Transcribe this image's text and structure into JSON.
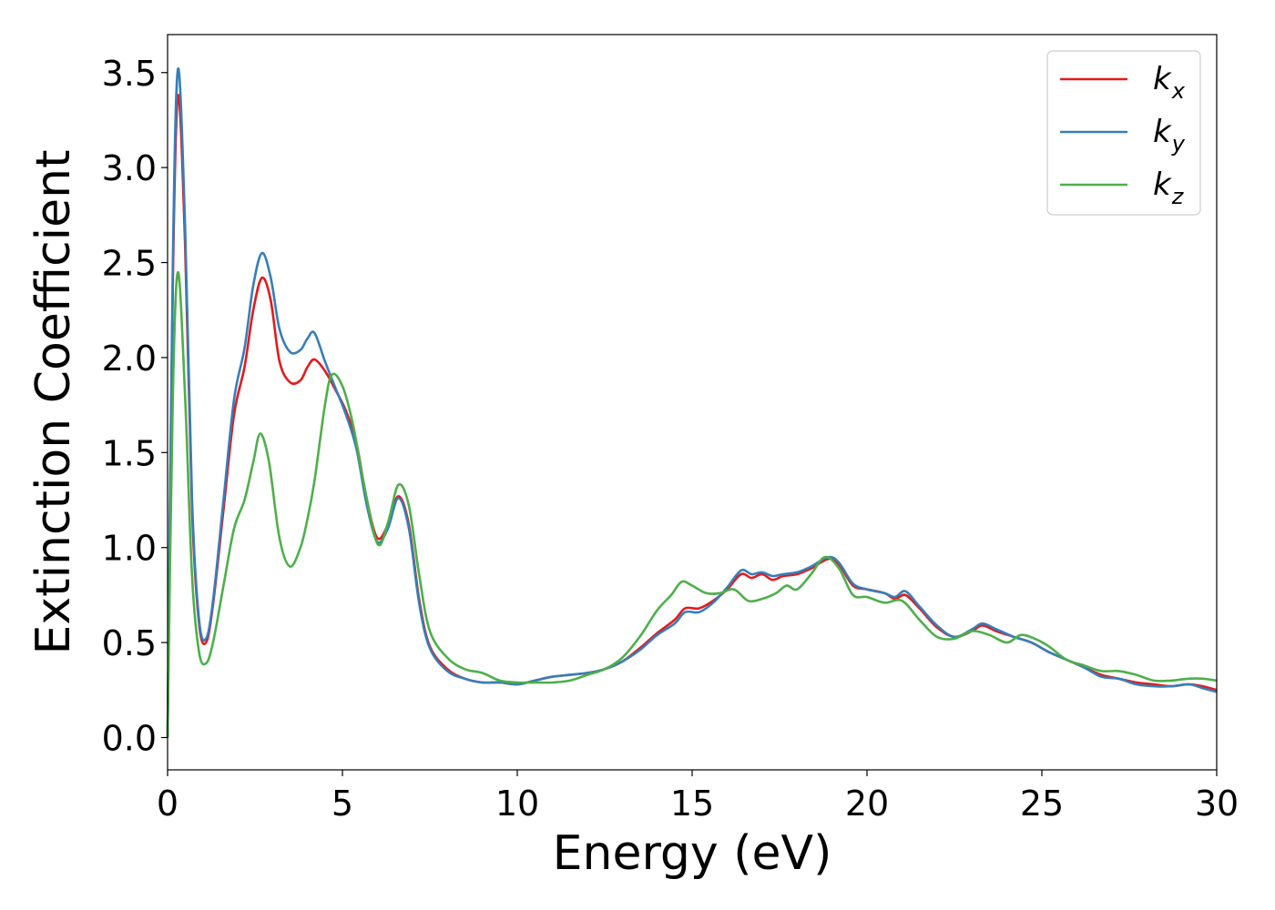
{
  "chart_data": {
    "type": "line",
    "xlabel": "Energy (eV)",
    "ylabel": "Extinction Coefficient",
    "xlim": [
      0,
      30
    ],
    "ylim": [
      -0.17,
      3.7
    ],
    "xticks": [
      0,
      5,
      10,
      15,
      20,
      25,
      30
    ],
    "xtick_labels": [
      "0",
      "5",
      "10",
      "15",
      "20",
      "25",
      "30"
    ],
    "yticks": [
      0.0,
      0.5,
      1.0,
      1.5,
      2.0,
      2.5,
      3.0,
      3.5
    ],
    "ytick_labels": [
      "0.0",
      "0.5",
      "1.0",
      "1.5",
      "2.0",
      "2.5",
      "3.0",
      "3.5"
    ],
    "grid": false,
    "legend_position": "top-right",
    "series": [
      {
        "name": "k",
        "subscript": "x",
        "color": "#e41a1c",
        "points": [
          [
            0,
            0.0
          ],
          [
            0.15,
            2.4
          ],
          [
            0.3,
            3.38
          ],
          [
            0.5,
            2.6
          ],
          [
            0.7,
            1.2
          ],
          [
            0.9,
            0.6
          ],
          [
            1.1,
            0.5
          ],
          [
            1.3,
            0.7
          ],
          [
            1.6,
            1.2
          ],
          [
            1.9,
            1.7
          ],
          [
            2.2,
            1.95
          ],
          [
            2.45,
            2.25
          ],
          [
            2.7,
            2.42
          ],
          [
            2.95,
            2.3
          ],
          [
            3.2,
            1.98
          ],
          [
            3.5,
            1.87
          ],
          [
            3.8,
            1.88
          ],
          [
            4.0,
            1.95
          ],
          [
            4.2,
            1.99
          ],
          [
            4.5,
            1.93
          ],
          [
            4.8,
            1.83
          ],
          [
            5.1,
            1.72
          ],
          [
            5.4,
            1.55
          ],
          [
            5.7,
            1.25
          ],
          [
            6.0,
            1.05
          ],
          [
            6.3,
            1.12
          ],
          [
            6.6,
            1.27
          ],
          [
            6.9,
            1.12
          ],
          [
            7.2,
            0.72
          ],
          [
            7.5,
            0.48
          ],
          [
            8.0,
            0.36
          ],
          [
            8.5,
            0.31
          ],
          [
            9.0,
            0.29
          ],
          [
            9.5,
            0.29
          ],
          [
            10.0,
            0.28
          ],
          [
            10.5,
            0.3
          ],
          [
            11.0,
            0.32
          ],
          [
            11.5,
            0.33
          ],
          [
            12.0,
            0.34
          ],
          [
            12.5,
            0.36
          ],
          [
            13.0,
            0.4
          ],
          [
            13.5,
            0.47
          ],
          [
            14.0,
            0.55
          ],
          [
            14.5,
            0.62
          ],
          [
            14.8,
            0.68
          ],
          [
            15.2,
            0.68
          ],
          [
            15.6,
            0.72
          ],
          [
            16.0,
            0.78
          ],
          [
            16.4,
            0.86
          ],
          [
            16.7,
            0.84
          ],
          [
            17.0,
            0.86
          ],
          [
            17.3,
            0.83
          ],
          [
            17.6,
            0.85
          ],
          [
            18.0,
            0.86
          ],
          [
            18.4,
            0.89
          ],
          [
            18.9,
            0.94
          ],
          [
            19.2,
            0.91
          ],
          [
            19.6,
            0.8
          ],
          [
            20.0,
            0.78
          ],
          [
            20.5,
            0.76
          ],
          [
            20.8,
            0.73
          ],
          [
            21.1,
            0.75
          ],
          [
            21.5,
            0.68
          ],
          [
            22.0,
            0.58
          ],
          [
            22.5,
            0.53
          ],
          [
            23.0,
            0.56
          ],
          [
            23.3,
            0.59
          ],
          [
            23.7,
            0.56
          ],
          [
            24.2,
            0.53
          ],
          [
            24.7,
            0.5
          ],
          [
            25.2,
            0.45
          ],
          [
            25.7,
            0.41
          ],
          [
            26.2,
            0.37
          ],
          [
            26.7,
            0.33
          ],
          [
            27.2,
            0.31
          ],
          [
            27.7,
            0.29
          ],
          [
            28.2,
            0.28
          ],
          [
            28.7,
            0.27
          ],
          [
            29.2,
            0.28
          ],
          [
            29.6,
            0.27
          ],
          [
            30.0,
            0.25
          ]
        ]
      },
      {
        "name": "k",
        "subscript": "y",
        "color": "#377eb8",
        "points": [
          [
            0,
            0.0
          ],
          [
            0.15,
            2.5
          ],
          [
            0.3,
            3.52
          ],
          [
            0.5,
            2.7
          ],
          [
            0.7,
            1.25
          ],
          [
            0.9,
            0.62
          ],
          [
            1.1,
            0.52
          ],
          [
            1.3,
            0.72
          ],
          [
            1.6,
            1.25
          ],
          [
            1.9,
            1.78
          ],
          [
            2.2,
            2.05
          ],
          [
            2.45,
            2.38
          ],
          [
            2.7,
            2.55
          ],
          [
            2.95,
            2.42
          ],
          [
            3.2,
            2.15
          ],
          [
            3.5,
            2.03
          ],
          [
            3.8,
            2.04
          ],
          [
            4.0,
            2.1
          ],
          [
            4.2,
            2.13
          ],
          [
            4.5,
            1.98
          ],
          [
            4.8,
            1.84
          ],
          [
            5.1,
            1.7
          ],
          [
            5.4,
            1.52
          ],
          [
            5.7,
            1.22
          ],
          [
            6.0,
            1.03
          ],
          [
            6.3,
            1.1
          ],
          [
            6.6,
            1.26
          ],
          [
            6.9,
            1.1
          ],
          [
            7.2,
            0.7
          ],
          [
            7.5,
            0.47
          ],
          [
            8.0,
            0.35
          ],
          [
            8.5,
            0.31
          ],
          [
            9.0,
            0.29
          ],
          [
            9.5,
            0.29
          ],
          [
            10.0,
            0.28
          ],
          [
            10.5,
            0.3
          ],
          [
            11.0,
            0.32
          ],
          [
            11.5,
            0.33
          ],
          [
            12.0,
            0.34
          ],
          [
            12.5,
            0.36
          ],
          [
            13.0,
            0.4
          ],
          [
            13.5,
            0.46
          ],
          [
            14.0,
            0.54
          ],
          [
            14.5,
            0.6
          ],
          [
            14.8,
            0.66
          ],
          [
            15.2,
            0.66
          ],
          [
            15.6,
            0.71
          ],
          [
            16.0,
            0.79
          ],
          [
            16.4,
            0.88
          ],
          [
            16.7,
            0.86
          ],
          [
            17.0,
            0.87
          ],
          [
            17.3,
            0.85
          ],
          [
            17.6,
            0.86
          ],
          [
            18.0,
            0.87
          ],
          [
            18.4,
            0.9
          ],
          [
            18.9,
            0.95
          ],
          [
            19.2,
            0.92
          ],
          [
            19.6,
            0.81
          ],
          [
            20.0,
            0.78
          ],
          [
            20.5,
            0.76
          ],
          [
            20.8,
            0.74
          ],
          [
            21.1,
            0.77
          ],
          [
            21.5,
            0.69
          ],
          [
            22.0,
            0.59
          ],
          [
            22.5,
            0.53
          ],
          [
            23.0,
            0.57
          ],
          [
            23.3,
            0.6
          ],
          [
            23.7,
            0.57
          ],
          [
            24.2,
            0.53
          ],
          [
            24.7,
            0.5
          ],
          [
            25.2,
            0.45
          ],
          [
            25.7,
            0.41
          ],
          [
            26.2,
            0.37
          ],
          [
            26.7,
            0.32
          ],
          [
            27.2,
            0.31
          ],
          [
            27.7,
            0.28
          ],
          [
            28.2,
            0.27
          ],
          [
            28.7,
            0.27
          ],
          [
            29.2,
            0.28
          ],
          [
            29.6,
            0.26
          ],
          [
            30.0,
            0.24
          ]
        ]
      },
      {
        "name": "k",
        "subscript": "z",
        "color": "#4daf4a",
        "points": [
          [
            0,
            0.0
          ],
          [
            0.15,
            1.8
          ],
          [
            0.3,
            2.45
          ],
          [
            0.5,
            1.8
          ],
          [
            0.7,
            0.85
          ],
          [
            0.9,
            0.45
          ],
          [
            1.1,
            0.39
          ],
          [
            1.3,
            0.5
          ],
          [
            1.6,
            0.8
          ],
          [
            1.9,
            1.1
          ],
          [
            2.2,
            1.25
          ],
          [
            2.45,
            1.45
          ],
          [
            2.65,
            1.6
          ],
          [
            2.9,
            1.45
          ],
          [
            3.2,
            1.05
          ],
          [
            3.5,
            0.9
          ],
          [
            3.8,
            1.0
          ],
          [
            4.0,
            1.15
          ],
          [
            4.2,
            1.35
          ],
          [
            4.5,
            1.75
          ],
          [
            4.7,
            1.91
          ],
          [
            5.0,
            1.85
          ],
          [
            5.3,
            1.65
          ],
          [
            5.6,
            1.35
          ],
          [
            6.0,
            1.02
          ],
          [
            6.3,
            1.13
          ],
          [
            6.6,
            1.33
          ],
          [
            6.9,
            1.22
          ],
          [
            7.2,
            0.85
          ],
          [
            7.5,
            0.56
          ],
          [
            8.0,
            0.42
          ],
          [
            8.5,
            0.36
          ],
          [
            9.0,
            0.34
          ],
          [
            9.5,
            0.3
          ],
          [
            10.0,
            0.29
          ],
          [
            10.5,
            0.29
          ],
          [
            11.0,
            0.29
          ],
          [
            11.5,
            0.3
          ],
          [
            12.0,
            0.33
          ],
          [
            12.5,
            0.36
          ],
          [
            13.0,
            0.42
          ],
          [
            13.5,
            0.53
          ],
          [
            14.0,
            0.67
          ],
          [
            14.4,
            0.75
          ],
          [
            14.7,
            0.82
          ],
          [
            15.0,
            0.8
          ],
          [
            15.4,
            0.76
          ],
          [
            15.8,
            0.76
          ],
          [
            16.2,
            0.78
          ],
          [
            16.6,
            0.72
          ],
          [
            17.0,
            0.73
          ],
          [
            17.4,
            0.76
          ],
          [
            17.7,
            0.8
          ],
          [
            18.0,
            0.78
          ],
          [
            18.4,
            0.86
          ],
          [
            18.8,
            0.95
          ],
          [
            19.2,
            0.89
          ],
          [
            19.6,
            0.75
          ],
          [
            20.0,
            0.74
          ],
          [
            20.5,
            0.71
          ],
          [
            21.0,
            0.72
          ],
          [
            21.5,
            0.62
          ],
          [
            22.0,
            0.53
          ],
          [
            22.5,
            0.52
          ],
          [
            23.0,
            0.56
          ],
          [
            23.5,
            0.54
          ],
          [
            24.0,
            0.5
          ],
          [
            24.4,
            0.54
          ],
          [
            24.8,
            0.52
          ],
          [
            25.2,
            0.48
          ],
          [
            25.7,
            0.41
          ],
          [
            26.2,
            0.38
          ],
          [
            26.7,
            0.35
          ],
          [
            27.2,
            0.35
          ],
          [
            27.7,
            0.33
          ],
          [
            28.2,
            0.3
          ],
          [
            28.7,
            0.3
          ],
          [
            29.2,
            0.31
          ],
          [
            29.6,
            0.31
          ],
          [
            30.0,
            0.3
          ]
        ]
      }
    ]
  }
}
